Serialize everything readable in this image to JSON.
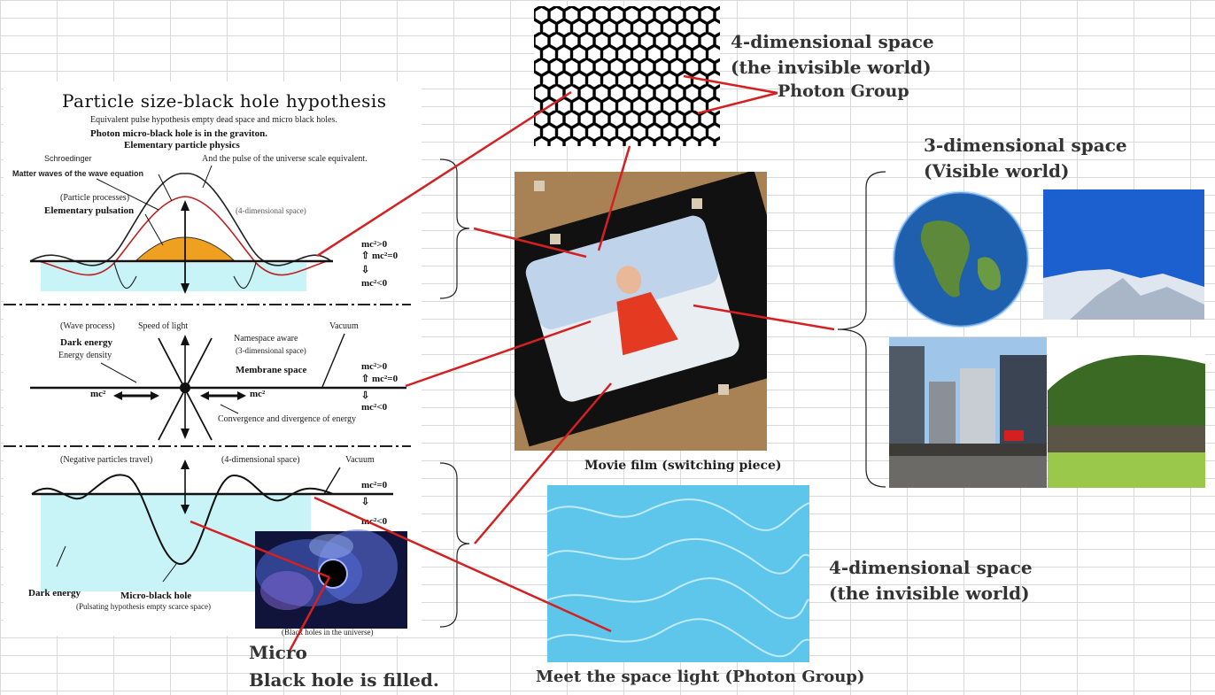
{
  "left_panel": {
    "title": "Particle size-black hole hypothesis",
    "line1": "Equivalent pulse hypothesis empty dead space and micro black holes.",
    "line2": "Photon micro-black hole is in the graviton.",
    "elementary_particle_physics": "Elementary particle physics",
    "universe_scale": "And the pulse of the universe scale equivalent.",
    "schroedinger": "Schroedinger",
    "matter_waves": "Matter waves of the wave equation",
    "particle_processes": "(Particle processes)",
    "elementary_pulsation": "Elementary pulsation",
    "four_dim_space_1": "(4-dimensional space)",
    "eq_pos": "mc²>0",
    "eq_zero": "mc²=0",
    "eq_neg": "mc²<0",
    "wave_process": "(Wave process)",
    "speed_of_light": "Speed of light",
    "vacuum": "Vacuum",
    "dark_energy_bold": "Dark energy",
    "energy_density": "Energy density",
    "namespace_aware": "Namespace aware",
    "three_dim_space": "(3-dimensional space)",
    "membrane_space": "Membrane space",
    "mc2": "mc²",
    "convergence": "Convergence and divergence of energy",
    "negative_particles": "(Negative particles travel)",
    "four_dim_space_2": "(4-dimensional space)",
    "dark_energy": "Dark energy",
    "micro_black_hole": "Micro-black hole",
    "pulsating_hypothesis": "(Pulsating hypothesis empty scarce space)",
    "black_holes_universe": "(Black holes in the universe)"
  },
  "labels": {
    "micro": "Micro",
    "black_hole_filled": "Black hole is filled.",
    "four_dim_top_1": "4-dimensional space",
    "four_dim_top_2": "(the invisible world)",
    "photon_group": "Photon Group",
    "three_dim_1": "3-dimensional space",
    "three_dim_2": "(Visible world)",
    "movie_film": "Movie film (switching piece)",
    "four_dim_bottom_1": "4-dimensional space",
    "four_dim_bottom_2": "(the invisible world)",
    "meet_space_light": "Meet the space light (Photon Group)"
  },
  "colors": {
    "connector": "#d42020",
    "cyan_fill": "#c8f4f8",
    "orange_fill": "#f0a020",
    "water": "#5ec6ea",
    "film_bg": "#b08a5a"
  }
}
